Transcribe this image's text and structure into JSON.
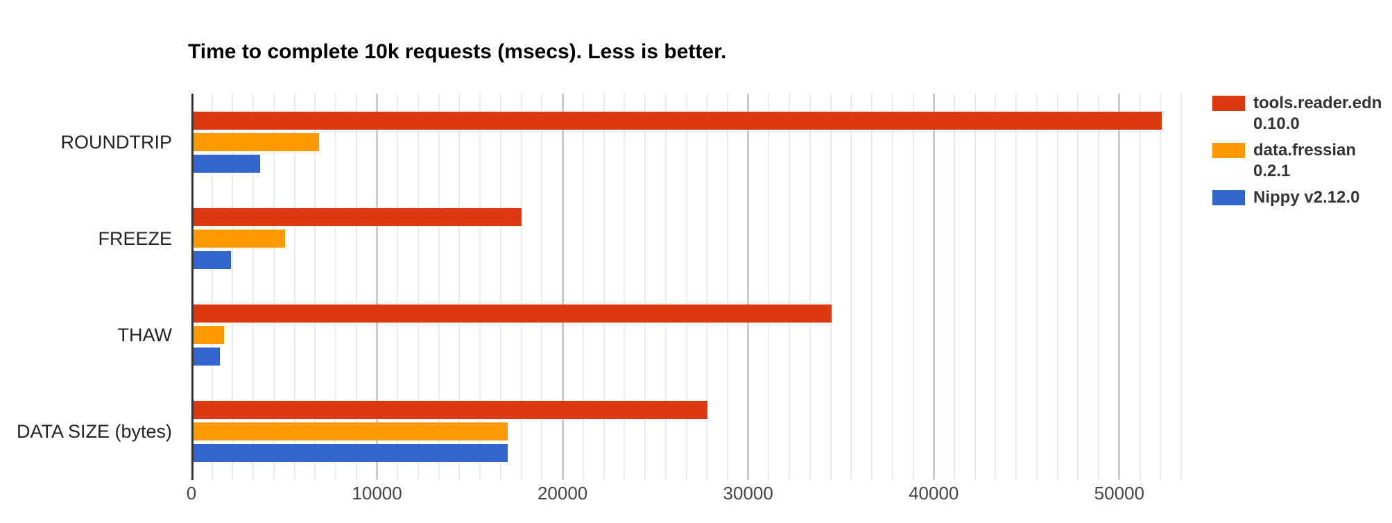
{
  "chart_data": {
    "type": "bar",
    "orientation": "horizontal",
    "title": "Time to complete 10k requests (msecs). Less is better.",
    "xlabel": "",
    "ylabel": "",
    "categories": [
      "ROUNDTRIP",
      "FREEZE",
      "THAW",
      "DATA SIZE (bytes)"
    ],
    "series": [
      {
        "name": "tools.reader.edn 0.10.0",
        "legend_lines": [
          "tools.reader.edn",
          "0.10.0"
        ],
        "color": "#dc3912",
        "values": [
          52300,
          17800,
          34500,
          27800
        ]
      },
      {
        "name": "data.fressian 0.2.1",
        "legend_lines": [
          "data.fressian",
          "0.2.1"
        ],
        "color": "#ff9900",
        "values": [
          6870,
          5040,
          1750,
          17050
        ]
      },
      {
        "name": "Nippy v2.12.0",
        "legend_lines": [
          "Nippy v2.12.0"
        ],
        "color": "#3366cc",
        "values": [
          3690,
          2130,
          1530,
          17050
        ]
      }
    ],
    "x_axis": {
      "min": 0,
      "max": 53333,
      "ticks": [
        0,
        10000,
        20000,
        30000,
        40000,
        50000
      ],
      "minor_gridlines_per_major": 9
    },
    "grid": true,
    "legend_position": "right",
    "colors": {
      "background": "#ffffff",
      "title_text": "#000000",
      "category_label_text": "#222222",
      "tick_label_text": "#444444",
      "legend_text": "#333333",
      "axis_line": "#333333",
      "major_gridline": "#cccccc",
      "minor_gridline": "#ebebeb"
    }
  }
}
